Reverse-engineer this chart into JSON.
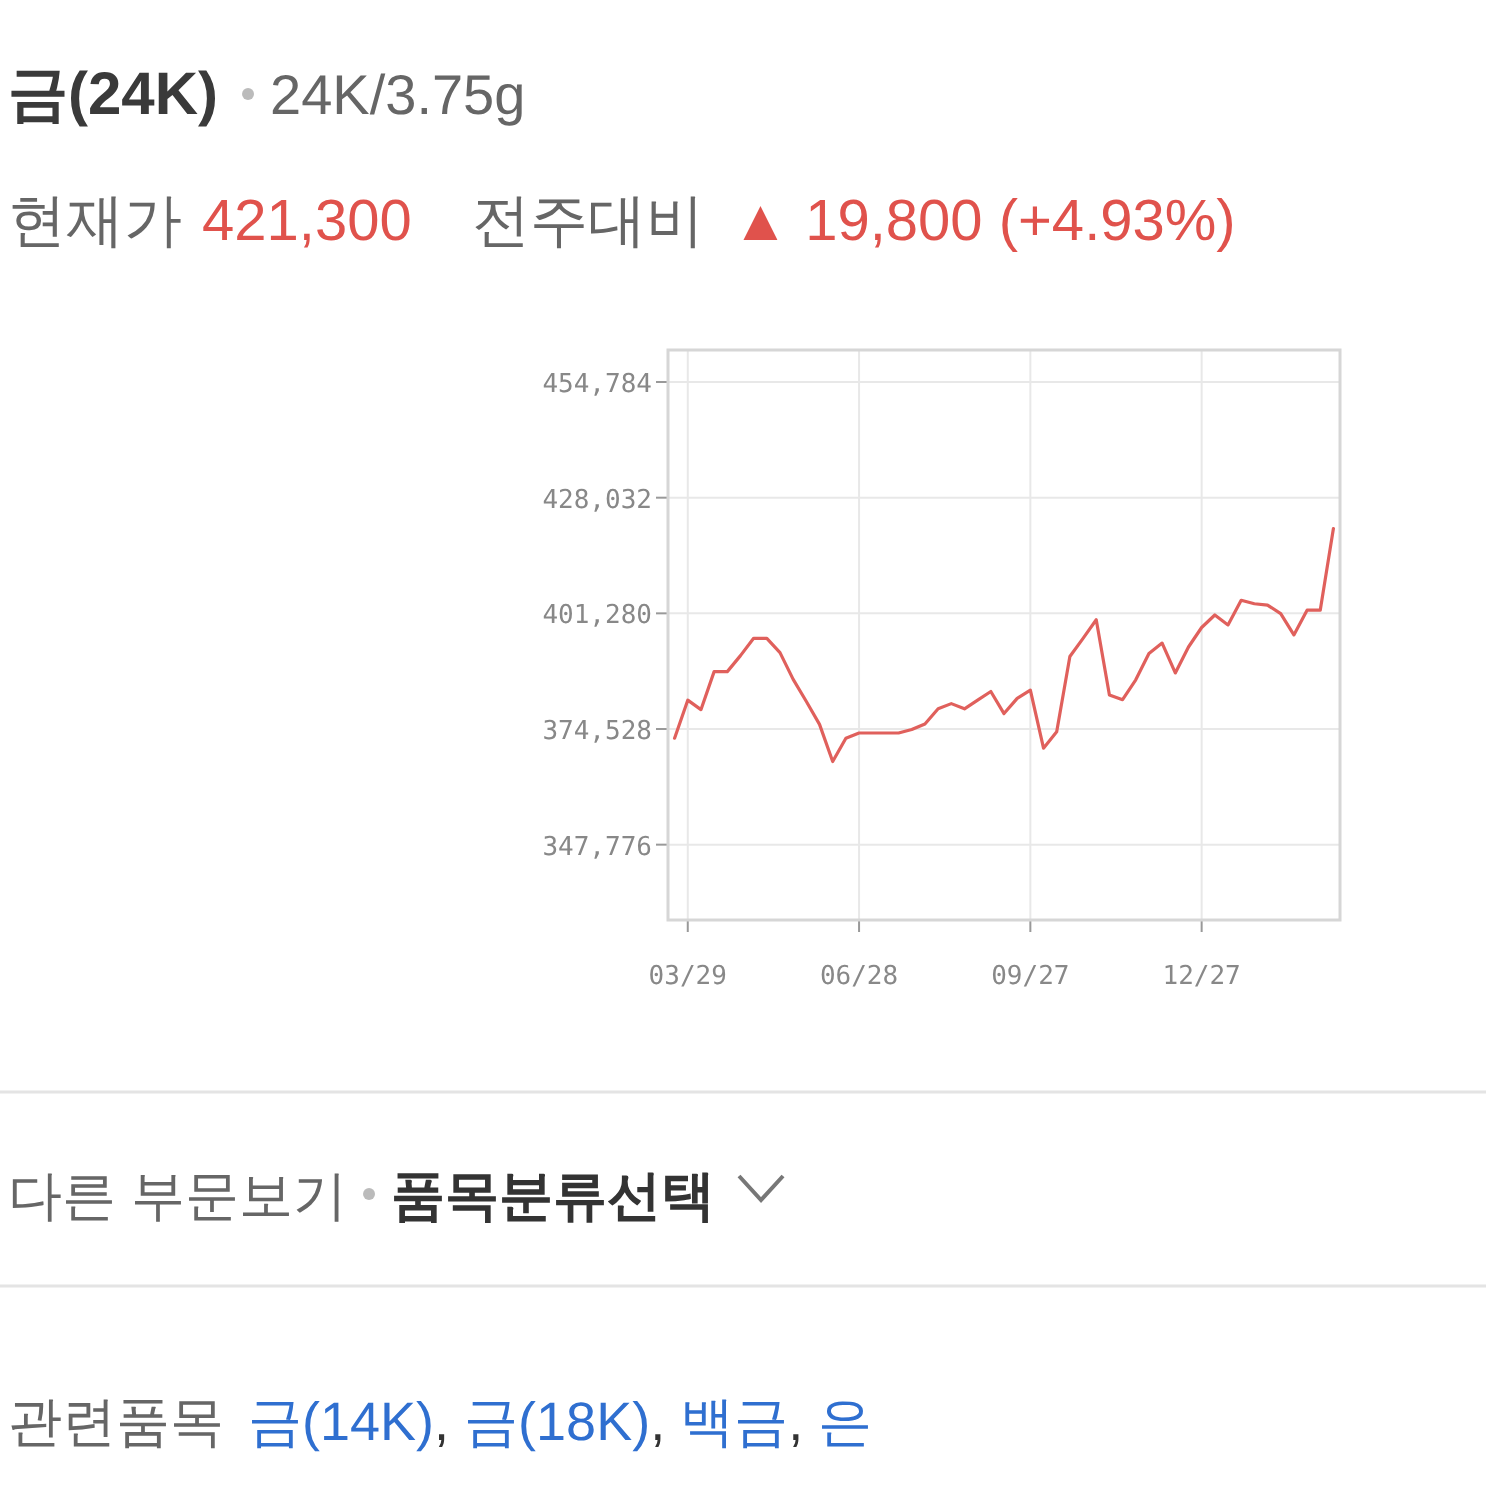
{
  "chart_data": {
    "type": "line",
    "title": "금(24K)",
    "subtitle": "24K/3.75g",
    "annotations": [
      "현재가",
      "421,300",
      "전주대비",
      "▲ 19,800 (+4.93%)",
      "다른 부문보기",
      "품목분류선택",
      "관련품목",
      "금(14K), 금(18K), 백금, 은"
    ],
    "categories": [
      null,
      "03/29",
      null,
      null,
      null,
      null,
      null,
      null,
      null,
      null,
      null,
      null,
      null,
      null,
      "06/28",
      null,
      null,
      null,
      null,
      null,
      null,
      null,
      null,
      null,
      null,
      null,
      null,
      "09/27",
      null,
      null,
      null,
      null,
      null,
      null,
      null,
      null,
      null,
      null,
      null,
      null,
      "12/27",
      null,
      null,
      null,
      null,
      null,
      null,
      null,
      null,
      null,
      null
    ],
    "series": [
      {
        "color": "#e0605c",
        "values": [
          372400,
          381200,
          379000,
          387800,
          387800,
          391500,
          395500,
          395500,
          392200,
          386000,
          380900,
          375600,
          367000,
          372400,
          373600,
          373600,
          373600,
          373600,
          374400,
          375700,
          379200,
          380400,
          379200,
          381200,
          383200,
          378100,
          381600,
          383500,
          370100,
          373900,
          391300,
          395500,
          399800,
          382400,
          381300,
          385900,
          392000,
          394400,
          387500,
          393500,
          398000,
          400900,
          398600,
          404300,
          403500,
          403200,
          401200,
          396300,
          402000,
          402000,
          420900
        ]
      }
    ],
    "ylim": [
      330350,
      462190
    ],
    "yticks": [
      {
        "value": 347776,
        "label": "347,776"
      },
      {
        "value": 374528,
        "label": "374,528"
      },
      {
        "value": 401280,
        "label": "401,280"
      },
      {
        "value": 428032,
        "label": "428,032"
      },
      {
        "value": 454784,
        "label": "454,784"
      }
    ],
    "grid": true
  }
}
